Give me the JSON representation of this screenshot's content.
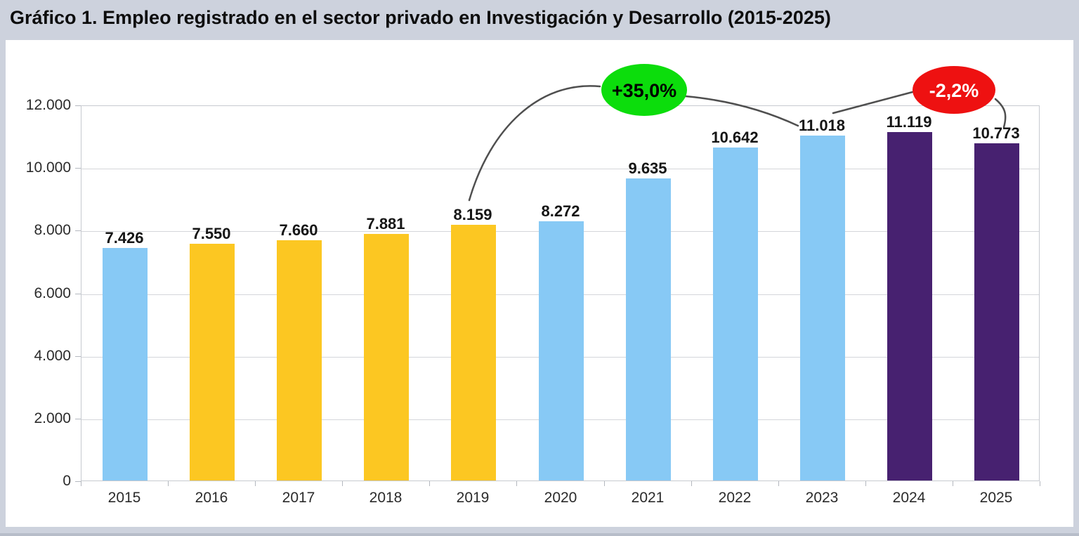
{
  "title": "Gráfico 1. Empleo registrado en el sector privado en Investigación y Desarrollo (2015-2025)",
  "chart_data": {
    "type": "bar",
    "categories": [
      "2015",
      "2016",
      "2017",
      "2018",
      "2019",
      "2020",
      "2021",
      "2022",
      "2023",
      "2024",
      "2025"
    ],
    "values": [
      7426,
      7550,
      7660,
      7881,
      8159,
      8272,
      9635,
      10642,
      11018,
      11119,
      10773
    ],
    "value_labels": [
      "7.426",
      "7.550",
      "7.660",
      "7.881",
      "8.159",
      "8.272",
      "9.635",
      "10.642",
      "11.018",
      "11.119",
      "10.773"
    ],
    "bar_colors": [
      "#87c9f5",
      "#fcc722",
      "#fcc722",
      "#fcc722",
      "#fcc722",
      "#87c9f5",
      "#87c9f5",
      "#87c9f5",
      "#87c9f5",
      "#472170",
      "#472170"
    ],
    "title": "",
    "xlabel": "",
    "ylabel": "",
    "ylim": [
      0,
      12000
    ],
    "ytick_values": [
      0,
      2000,
      4000,
      6000,
      8000,
      10000,
      12000
    ],
    "ytick_labels": [
      "0",
      "2.000",
      "4.000",
      "6.000",
      "8.000",
      "10.000",
      "12.000"
    ],
    "grid": true,
    "legend": "none",
    "plot_background": "#ffffff",
    "page_background": "#cdd2dd",
    "annotations": [
      {
        "label": "+35,0%",
        "shape": "ellipse",
        "color": "#0cdd0c",
        "text_color": "#000000",
        "from_category": "2019",
        "to_category": "2023"
      },
      {
        "label": "-2,2%",
        "shape": "ellipse",
        "color": "#ee1111",
        "text_color": "#ffffff",
        "from_category": "2023",
        "to_category": "2025"
      }
    ]
  }
}
